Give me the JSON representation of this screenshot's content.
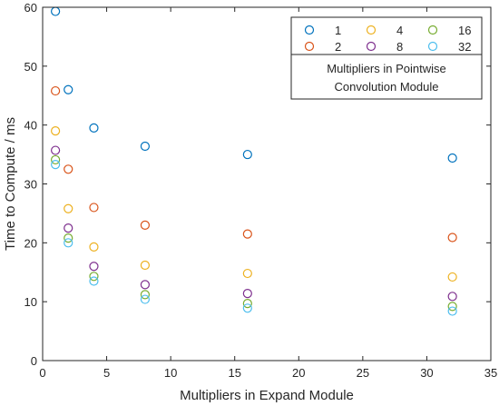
{
  "chart_data": {
    "type": "scatter",
    "xlabel": "Multipliers in Expand Module",
    "ylabel": "Time to Compute / ms",
    "xlim": [
      0,
      35
    ],
    "ylim": [
      0,
      60
    ],
    "xticks": [
      0,
      5,
      10,
      15,
      20,
      25,
      30,
      35
    ],
    "yticks": [
      0,
      10,
      20,
      30,
      40,
      50,
      60
    ],
    "grid": false,
    "legend_placement": "top-right",
    "legend_title_lines": [
      "Multipliers in Pointwise",
      "Convolution Module"
    ],
    "x": [
      1,
      2,
      4,
      8,
      16,
      32
    ],
    "series": [
      {
        "name": "1",
        "color": "#0072BD",
        "values": [
          59.3,
          46.0,
          39.5,
          36.4,
          35.0,
          34.4
        ]
      },
      {
        "name": "2",
        "color": "#D95319",
        "values": [
          45.8,
          32.5,
          26.0,
          23.0,
          21.5,
          20.9
        ]
      },
      {
        "name": "4",
        "color": "#EDB120",
        "values": [
          39.0,
          25.8,
          19.3,
          16.2,
          14.8,
          14.2
        ]
      },
      {
        "name": "8",
        "color": "#7E2F8E",
        "values": [
          35.7,
          22.5,
          16.0,
          12.9,
          11.4,
          10.9
        ]
      },
      {
        "name": "16",
        "color": "#77AC30",
        "values": [
          34.1,
          20.8,
          14.3,
          11.2,
          9.7,
          9.2
        ]
      },
      {
        "name": "32",
        "color": "#4DBEEE",
        "values": [
          33.3,
          20.0,
          13.5,
          10.4,
          8.9,
          8.4
        ]
      }
    ]
  }
}
